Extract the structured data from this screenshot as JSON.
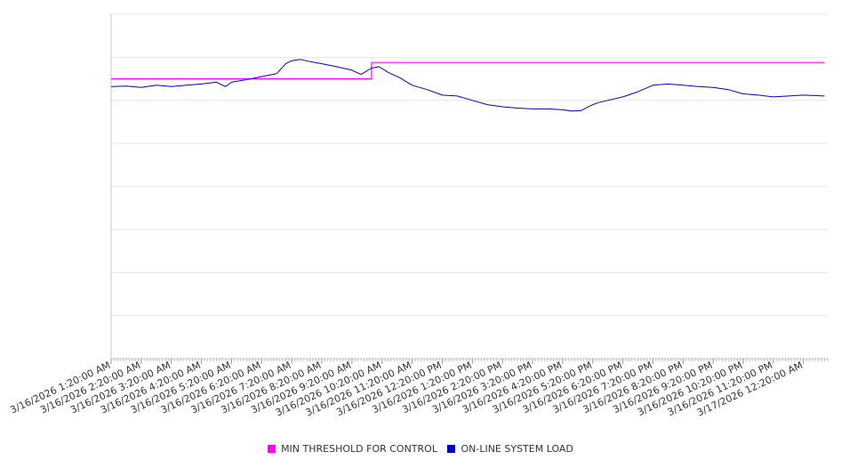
{
  "chart_data": {
    "type": "line",
    "title": "",
    "xlabel": "",
    "ylabel": "",
    "grid": true,
    "legend_position": "bottom-center",
    "ylim": [
      0,
      8
    ],
    "x_ticks": [
      "3/16/2026 1:20:00 AM",
      "3/16/2026 2:20:00 AM",
      "3/16/2026 3:20:00 AM",
      "3/16/2026 4:20:00 AM",
      "3/16/2026 5:20:00 AM",
      "3/16/2026 6:20:00 AM",
      "3/16/2026 7:20:00 AM",
      "3/16/2026 8:20:00 AM",
      "3/16/2026 9:20:00 AM",
      "3/16/2026 10:20:00 AM",
      "3/16/2026 11:20:00 AM",
      "3/16/2026 12:20:00 PM",
      "3/16/2026 1:20:00 PM",
      "3/16/2026 2:20:00 PM",
      "3/16/2026 3:20:00 PM",
      "3/16/2026 4:20:00 PM",
      "3/16/2026 5:20:00 PM",
      "3/16/2026 6:20:00 PM",
      "3/16/2026 7:20:00 PM",
      "3/16/2026 8:20:00 PM",
      "3/16/2026 9:20:00 PM",
      "3/16/2026 10:20:00 PM",
      "3/16/2026 11:20:00 PM",
      "3/17/2026 12:20:00 AM"
    ],
    "series": [
      {
        "name": "MIN THRESHOLD FOR CONTROL",
        "color": "#ff00ff",
        "x": [
          0,
          8.65,
          8.65,
          23.7
        ],
        "values": [
          6.5,
          6.5,
          6.88,
          6.88
        ]
      },
      {
        "name": "ON-LINE SYSTEM LOAD",
        "color": "#0000cc",
        "x": [
          0,
          0.5,
          1,
          1.5,
          2,
          2.5,
          3,
          3.5,
          3.8,
          4,
          4.5,
          5,
          5.5,
          5.8,
          6,
          6.3,
          6.6,
          7,
          7.5,
          8,
          8.3,
          8.65,
          8.9,
          9.2,
          9.6,
          10,
          10.5,
          11,
          11.5,
          12,
          12.5,
          13,
          13.5,
          14,
          14.5,
          15,
          15.3,
          15.6,
          16,
          16.2,
          16.5,
          17,
          17.5,
          18,
          18.5,
          19,
          19.5,
          20,
          20.5,
          21,
          21.5,
          22,
          22.5,
          23,
          23.7
        ],
        "values": [
          6.32,
          6.33,
          6.3,
          6.35,
          6.32,
          6.35,
          6.38,
          6.42,
          6.32,
          6.42,
          6.48,
          6.55,
          6.62,
          6.85,
          6.92,
          6.95,
          6.9,
          6.85,
          6.78,
          6.7,
          6.6,
          6.75,
          6.78,
          6.65,
          6.52,
          6.35,
          6.25,
          6.12,
          6.1,
          6.0,
          5.9,
          5.85,
          5.82,
          5.8,
          5.8,
          5.78,
          5.75,
          5.76,
          5.9,
          5.95,
          6.0,
          6.08,
          6.2,
          6.35,
          6.38,
          6.35,
          6.32,
          6.3,
          6.25,
          6.15,
          6.12,
          6.08,
          6.1,
          6.12,
          6.1
        ]
      }
    ]
  }
}
